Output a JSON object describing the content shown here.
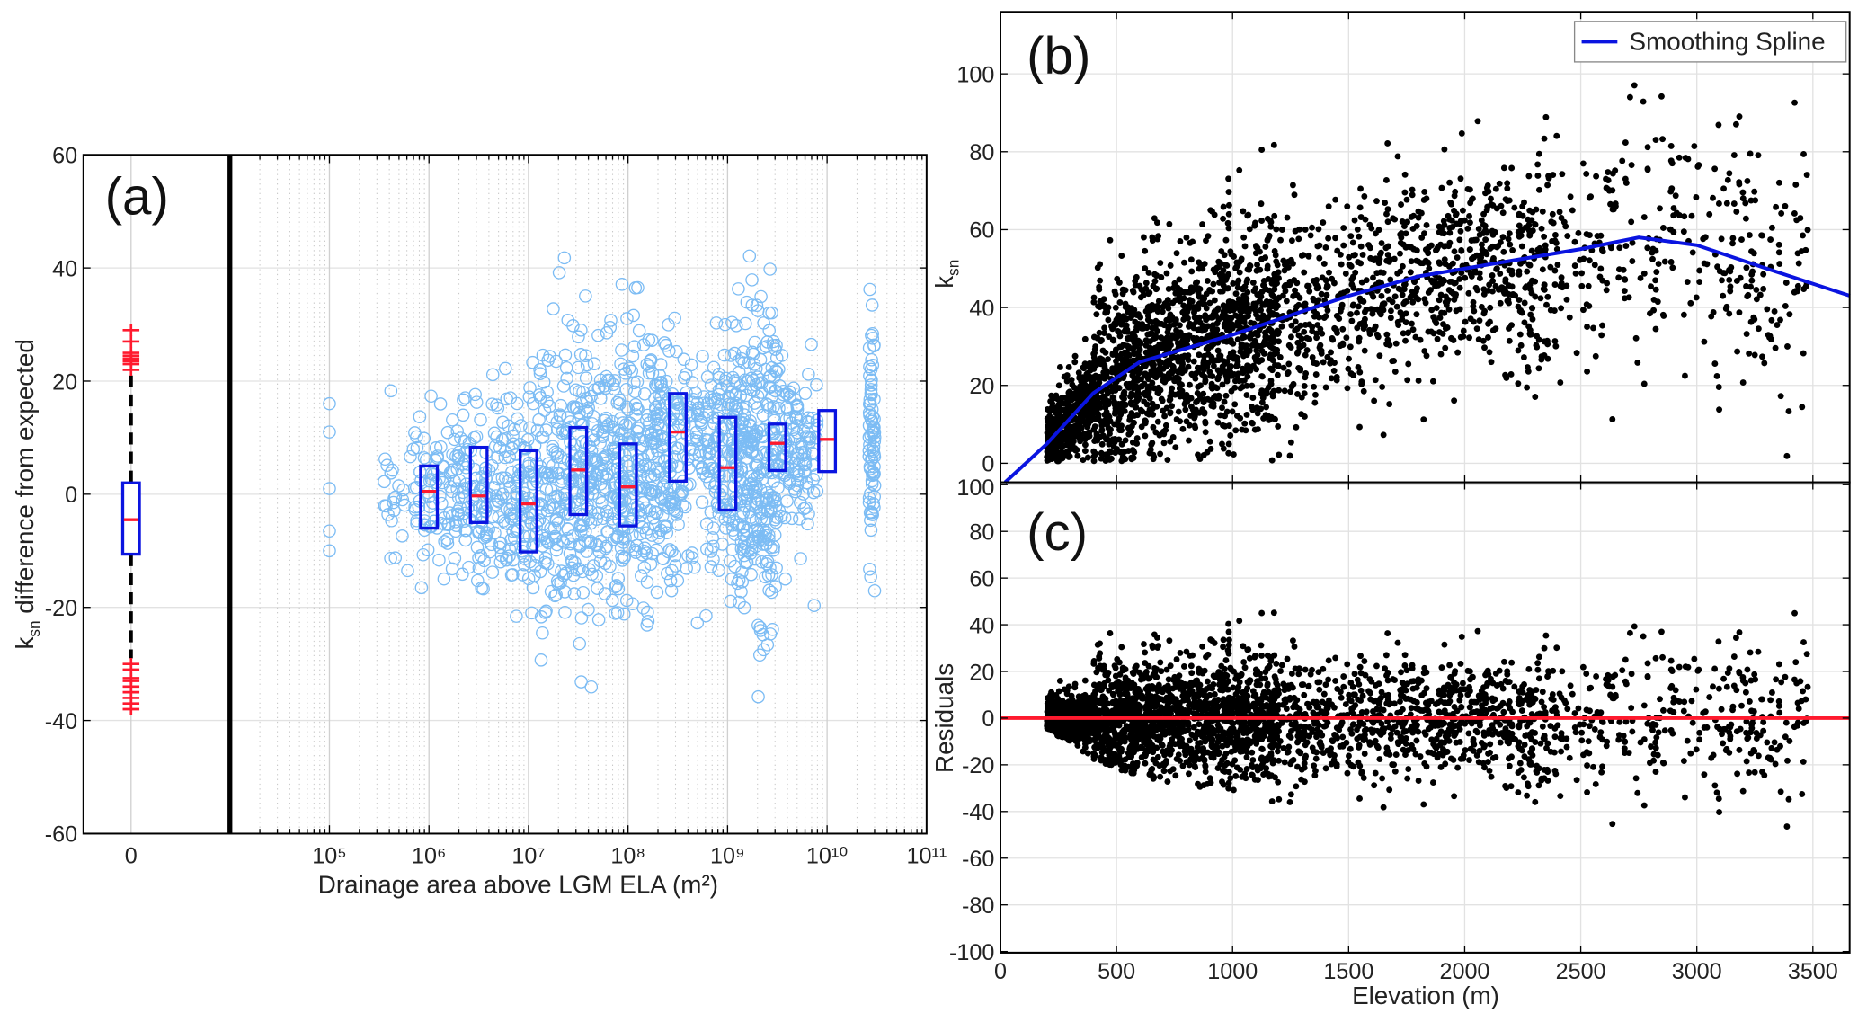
{
  "chart_data": [
    {
      "panel": "(a)",
      "type": "scatter+box",
      "xlabel": "Drainage area above LGM ELA (m²)",
      "ylabel": {
        "k": "k",
        "sub": "sn",
        "rest": " difference from expected"
      },
      "ylim": [
        -60,
        60
      ],
      "yticks": [
        "-60",
        "-40",
        "-20",
        "0",
        "20",
        "40",
        "60"
      ],
      "xscale": "log",
      "xlim_log10": [
        4,
        11
      ],
      "xtick_labels": [
        "10⁵",
        "10⁶",
        "10⁷",
        "10⁸",
        "10⁹",
        "10¹⁰",
        "10¹¹"
      ],
      "category_label": "0",
      "category_box": {
        "q1": -10.6,
        "median": -4.5,
        "q3": 2,
        "whisker_low": -29,
        "whisker_high": 21,
        "outliers": [
          22,
          23,
          23.5,
          24,
          24.5,
          25,
          27,
          29,
          -30,
          -31,
          -32.5,
          -33,
          -34,
          -35,
          -36,
          -37,
          -38
        ]
      },
      "boxes": [
        {
          "log10_area": 6.0,
          "q1": -6,
          "median": 0.5,
          "q3": 5
        },
        {
          "log10_area": 6.5,
          "q1": -5,
          "median": -0.3,
          "q3": 8.3
        },
        {
          "log10_area": 7.0,
          "q1": -10.2,
          "median": -1.7,
          "q3": 7.7
        },
        {
          "log10_area": 7.5,
          "q1": -3.6,
          "median": 4.3,
          "q3": 11.8
        },
        {
          "log10_area": 8.0,
          "q1": -5.6,
          "median": 1.3,
          "q3": 8.9
        },
        {
          "log10_area": 8.5,
          "q1": 2.3,
          "median": 11,
          "q3": 17.8
        },
        {
          "log10_area": 9.0,
          "q1": -2.8,
          "median": 4.7,
          "q3": 13.6
        },
        {
          "log10_area": 9.5,
          "q1": 4.2,
          "median": 9,
          "q3": 12.4
        },
        {
          "log10_area": 10.0,
          "q1": 4,
          "median": 9.7,
          "q3": 14.8
        }
      ],
      "scatter_groups": [
        {
          "log10_range": [
            5.0,
            5.0
          ],
          "values": [
            16,
            11,
            1,
            -6.5,
            -10
          ]
        },
        {
          "log10_range": [
            5.55,
            5.95
          ],
          "n": 40,
          "mean": 0,
          "sd": 7
        },
        {
          "log10_range": [
            5.95,
            6.5
          ],
          "n": 120,
          "mean": 0,
          "sd": 8
        },
        {
          "log10_range": [
            6.5,
            7.0
          ],
          "n": 150,
          "mean": -1,
          "sd": 9
        },
        {
          "log10_range": [
            7.0,
            7.5
          ],
          "n": 200,
          "mean": 1,
          "sd": 12
        },
        {
          "log10_range": [
            7.5,
            8.0
          ],
          "n": 250,
          "mean": 3,
          "sd": 12
        },
        {
          "log10_range": [
            8.0,
            8.5
          ],
          "n": 250,
          "mean": 5,
          "sd": 12
        },
        {
          "log10_range": [
            8.5,
            9.0
          ],
          "n": 150,
          "mean": 8,
          "sd": 11
        },
        {
          "log10_range": [
            9.0,
            9.5
          ],
          "n": 350,
          "mean": 5,
          "sd": 14
        },
        {
          "log10_range": [
            9.5,
            9.9
          ],
          "n": 120,
          "mean": 9,
          "sd": 8
        },
        {
          "log10_range": [
            10.42,
            10.48
          ],
          "n": 80,
          "mean": 9,
          "sd": 12
        }
      ],
      "colors": {
        "points": "#7cbcf4",
        "box": "#0a14e0",
        "median": "#ff1a2e",
        "outlier": "#ff1a2e",
        "whisker": "#000000"
      }
    },
    {
      "panel": "(b)",
      "type": "scatter+line",
      "xlabel": "Elevation (m)",
      "ylabel": {
        "k": "k",
        "sub": "sn"
      },
      "xlim": [
        0,
        3660
      ],
      "ylim": [
        -5,
        116
      ],
      "yticks": [
        "0",
        "20",
        "40",
        "60",
        "80",
        "100"
      ],
      "legend": {
        "label": "Smoothing Spline",
        "placement": "top-right"
      },
      "spline": [
        [
          20,
          -5
        ],
        [
          200,
          5
        ],
        [
          400,
          18
        ],
        [
          600,
          26
        ],
        [
          800,
          29.5
        ],
        [
          1000,
          33
        ],
        [
          1200,
          37
        ],
        [
          1500,
          43
        ],
        [
          1800,
          48
        ],
        [
          2000,
          50
        ],
        [
          2200,
          52
        ],
        [
          2500,
          55
        ],
        [
          2750,
          58
        ],
        [
          3000,
          56
        ],
        [
          3300,
          50
        ],
        [
          3660,
          43
        ]
      ],
      "scatter_model": {
        "n": 3000,
        "x_range": [
          170,
          3480
        ],
        "residual_sd": 13
      },
      "colors": {
        "points": "#000000",
        "spline": "#0a14e0"
      }
    },
    {
      "panel": "(c)",
      "type": "scatter",
      "xlabel": "Elevation (m)",
      "ylabel": "Residuals",
      "xlim": [
        0,
        3660
      ],
      "ylim": [
        -100,
        100
      ],
      "yticks": [
        "-100",
        "-80",
        "-60",
        "-40",
        "-20",
        "0",
        "20",
        "40",
        "60",
        "80",
        "100"
      ],
      "xticks": [
        "0",
        "500",
        "1000",
        "1500",
        "2000",
        "2500",
        "3000",
        "3500"
      ],
      "zero_line_color": "#ff1a2e"
    }
  ]
}
